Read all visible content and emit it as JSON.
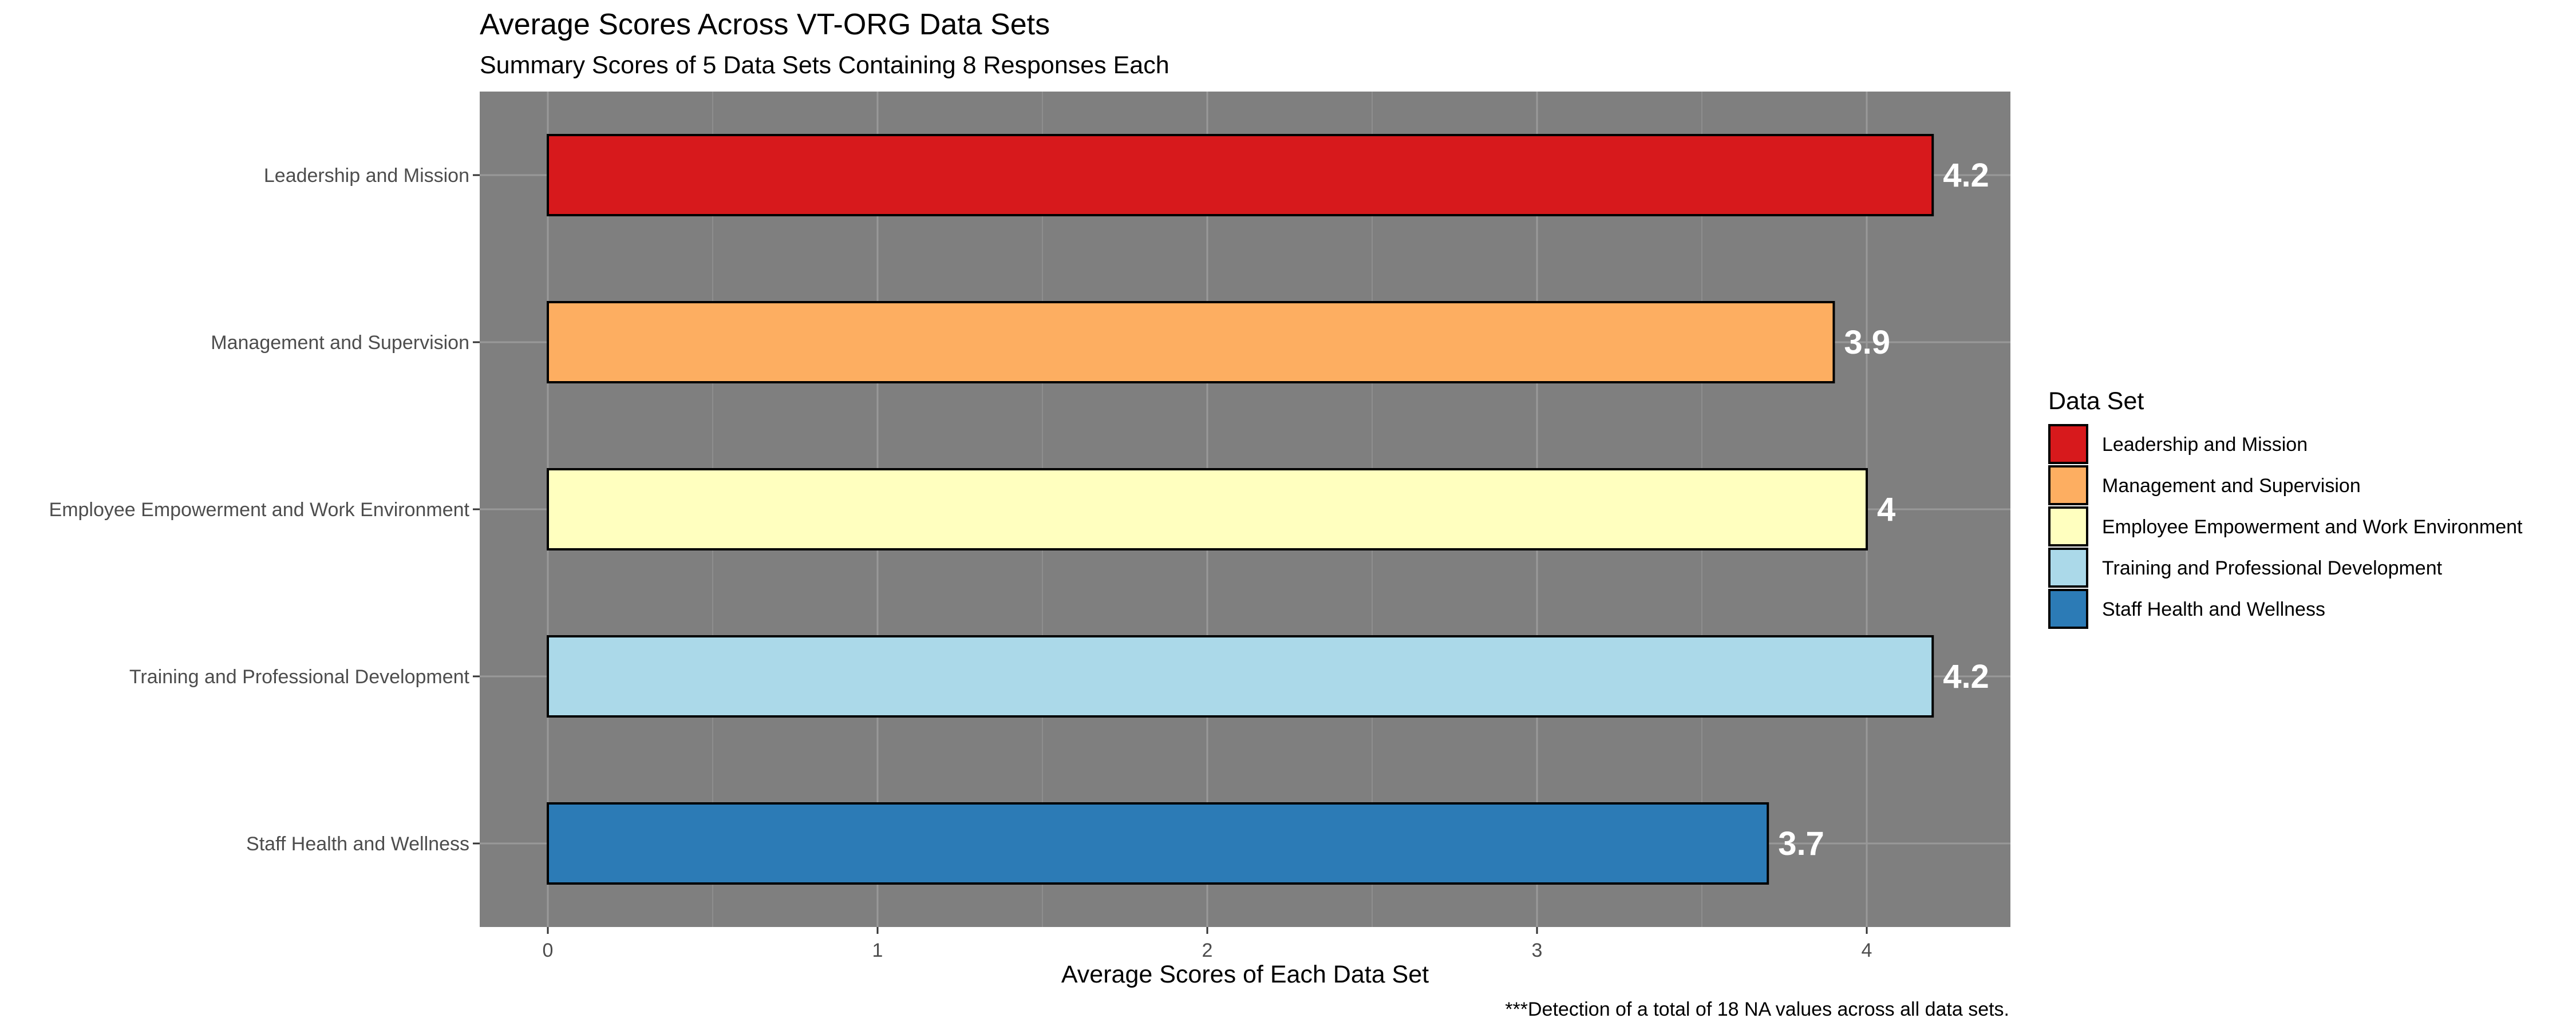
{
  "chart_data": {
    "type": "bar",
    "orientation": "horizontal",
    "title": "Average Scores Across VT-ORG Data Sets",
    "subtitle": "Summary Scores of 5 Data Sets Containing 8 Responses Each",
    "xlabel": "Average Scores of Each Data Set",
    "ylabel": "",
    "caption": "***Detection of a total of 18 NA values across all data sets.",
    "categories": [
      "Leadership and Mission",
      "Management and Supervision",
      "Employee Empowerment and Work Environment",
      "Training and Professional Development",
      "Staff Health and Wellness"
    ],
    "values": [
      4.2,
      3.9,
      4.0,
      4.2,
      3.7
    ],
    "data_labels": [
      "4.2",
      "3.9",
      "4",
      "4.2",
      "3.7"
    ],
    "colors": [
      "#d7191c",
      "#fdae61",
      "#ffffbf",
      "#abd9e9",
      "#2c7bb6"
    ],
    "xlim": [
      -0.2,
      4.2
    ],
    "xticks": [
      0,
      1,
      2,
      3,
      4
    ],
    "grid": true,
    "panel_background": "#7f7f7f",
    "legend": {
      "title": "Data Set",
      "position": "right",
      "entries": [
        "Leadership and Mission",
        "Management and Supervision",
        "Employee Empowerment and Work Environment",
        "Training and Professional Development",
        "Staff Health and Wellness"
      ]
    }
  }
}
